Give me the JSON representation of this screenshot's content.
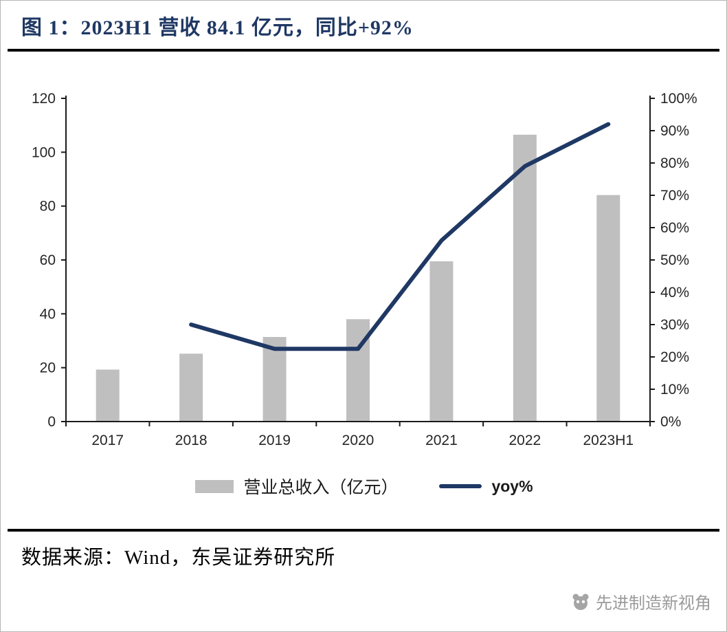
{
  "page": {
    "title": "图 1：2023H1 营收 84.1 亿元，同比+92%",
    "source": "数据来源：Wind，东吴证券研究所",
    "watermark": "先进制造新视角"
  },
  "legend": {
    "bar_label": "营业总收入（亿元）",
    "line_label": "yoy%"
  },
  "colors": {
    "title": "#1F3864",
    "bar": "#BFBFBF",
    "line": "#1F3864",
    "axis": "#1a1a1a",
    "watermark_text": "#9b9b9b"
  },
  "chart_data": {
    "type": "bar+line",
    "title": "图 1：2023H1 营收 84.1 亿元，同比+92%",
    "categories": [
      "2017",
      "2018",
      "2019",
      "2020",
      "2021",
      "2022",
      "2023H1"
    ],
    "series": [
      {
        "name": "营业总收入（亿元）",
        "type": "bar",
        "axis": "left",
        "color": "#BFBFBF",
        "values": [
          19.3,
          25.2,
          31.4,
          38.0,
          59.5,
          106.5,
          84.1
        ]
      },
      {
        "name": "yoy%",
        "type": "line",
        "axis": "right",
        "color": "#1F3864",
        "values": [
          null,
          30,
          22.5,
          22.5,
          56,
          79,
          92
        ]
      }
    ],
    "left_axis": {
      "min": 0,
      "max": 120,
      "step": 20
    },
    "right_axis": {
      "min": 0,
      "max": 100,
      "step": 10,
      "suffix": "%"
    },
    "grid": false,
    "legend_position": "bottom"
  }
}
